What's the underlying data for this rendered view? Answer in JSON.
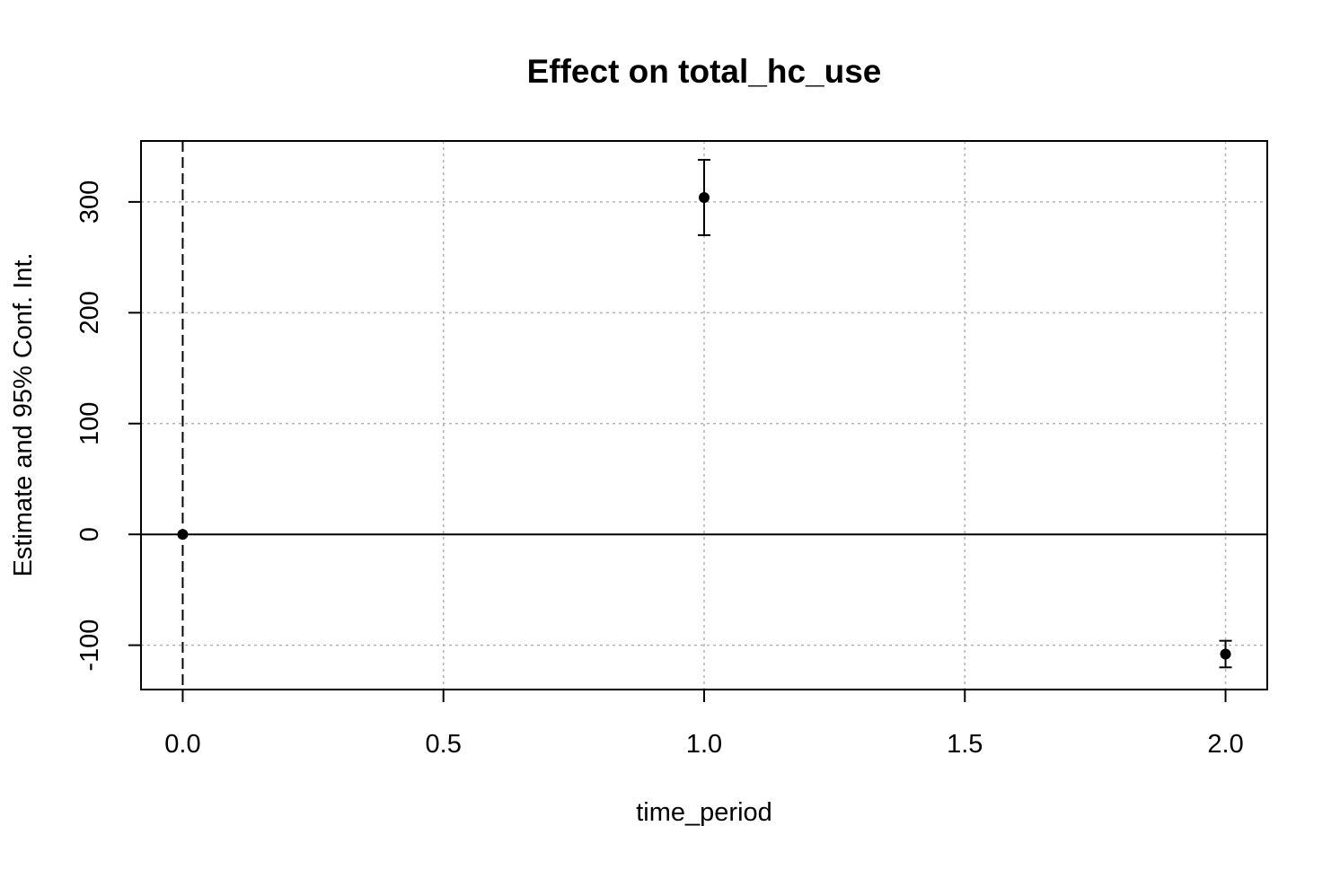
{
  "chart_data": {
    "type": "scatter",
    "title": "Effect on total_hc_use",
    "xlabel": "time_period",
    "ylabel": "Estimate and 95% Conf. Int.",
    "xlim": [
      -0.08,
      2.08
    ],
    "ylim": [
      -140,
      355
    ],
    "x_ticks": [
      0.0,
      0.5,
      1.0,
      1.5,
      2.0
    ],
    "x_tick_labels": [
      "0.0",
      "0.5",
      "1.0",
      "1.5",
      "2.0"
    ],
    "y_ticks": [
      -100,
      0,
      100,
      200,
      300
    ],
    "y_tick_labels": [
      "-100",
      "0",
      "100",
      "200",
      "300"
    ],
    "grid": true,
    "reference_lines": {
      "horizontal_y": 0,
      "vertical_x": 0
    },
    "points": [
      {
        "x": 0,
        "estimate": 0,
        "ci_low": null,
        "ci_high": null
      },
      {
        "x": 1,
        "estimate": 304,
        "ci_low": 270,
        "ci_high": 338
      },
      {
        "x": 2,
        "estimate": -108,
        "ci_low": -120,
        "ci_high": -96
      }
    ],
    "colors": {
      "points": "#000000",
      "grid": "#b3b3b3",
      "axes": "#000000"
    }
  }
}
